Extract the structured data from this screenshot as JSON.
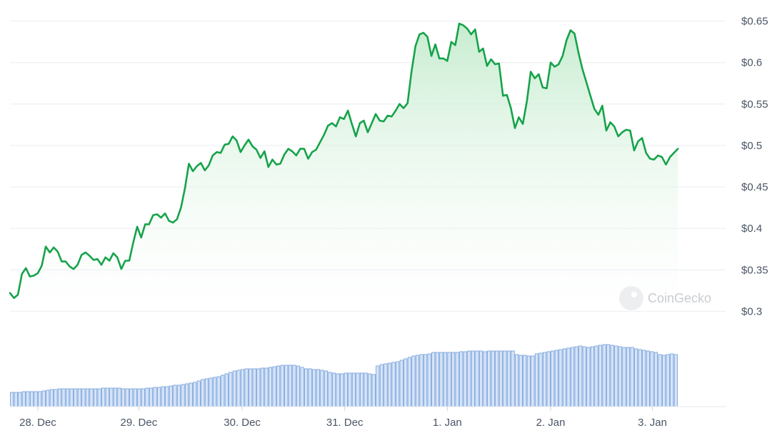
{
  "chart_data": {
    "type": "line",
    "watermark": "CoinGecko",
    "y_ticks": [
      "$0.3",
      "$0.35",
      "$0.4",
      "$0.45",
      "$0.5",
      "$0.55",
      "$0.6",
      "$0.65"
    ],
    "y_tick_values": [
      0.3,
      0.35,
      0.4,
      0.45,
      0.5,
      0.55,
      0.6,
      0.65
    ],
    "ylim": [
      0.29,
      0.66
    ],
    "x_ticks": [
      "28. Dec",
      "29. Dec",
      "30. Dec",
      "31. Dec",
      "1. Jan",
      "2. Jan",
      "3. Jan"
    ],
    "x_tick_values": [
      27.85,
      29.12,
      30.42,
      31.71,
      33.0,
      34.3,
      35.58
    ],
    "xlim": [
      27.5,
      36.5
    ],
    "grid": true,
    "colors": {
      "line": "#16a34a",
      "fill_top": "#c4ebcd",
      "volume_fill": "#d6e4f7",
      "volume_stroke": "#6f9bd8"
    },
    "series": [
      {
        "values": [
          [
            27.5,
            0.322
          ],
          [
            27.55,
            0.316
          ],
          [
            27.6,
            0.32
          ],
          [
            27.65,
            0.345
          ],
          [
            27.7,
            0.352
          ],
          [
            27.75,
            0.342
          ],
          [
            27.8,
            0.343
          ],
          [
            27.85,
            0.346
          ],
          [
            27.9,
            0.355
          ],
          [
            27.95,
            0.378
          ],
          [
            28.0,
            0.371
          ],
          [
            28.05,
            0.377
          ],
          [
            28.1,
            0.372
          ],
          [
            28.15,
            0.36
          ],
          [
            28.2,
            0.36
          ],
          [
            28.25,
            0.354
          ],
          [
            28.3,
            0.351
          ],
          [
            28.35,
            0.356
          ],
          [
            28.4,
            0.368
          ],
          [
            28.45,
            0.371
          ],
          [
            28.5,
            0.367
          ],
          [
            28.55,
            0.362
          ],
          [
            28.6,
            0.363
          ],
          [
            28.65,
            0.356
          ],
          [
            28.7,
            0.365
          ],
          [
            28.75,
            0.361
          ],
          [
            28.8,
            0.37
          ],
          [
            28.85,
            0.365
          ],
          [
            28.9,
            0.351
          ],
          [
            28.95,
            0.361
          ],
          [
            29.0,
            0.361
          ],
          [
            29.05,
            0.383
          ],
          [
            29.1,
            0.402
          ],
          [
            29.15,
            0.389
          ],
          [
            29.2,
            0.405
          ],
          [
            29.25,
            0.405
          ],
          [
            29.3,
            0.416
          ],
          [
            29.35,
            0.417
          ],
          [
            29.4,
            0.413
          ],
          [
            29.45,
            0.418
          ],
          [
            29.5,
            0.409
          ],
          [
            29.55,
            0.407
          ],
          [
            29.6,
            0.411
          ],
          [
            29.65,
            0.425
          ],
          [
            29.7,
            0.448
          ],
          [
            29.75,
            0.478
          ],
          [
            29.8,
            0.469
          ],
          [
            29.85,
            0.475
          ],
          [
            29.9,
            0.479
          ],
          [
            29.95,
            0.47
          ],
          [
            30.0,
            0.476
          ],
          [
            30.05,
            0.488
          ],
          [
            30.1,
            0.492
          ],
          [
            30.15,
            0.491
          ],
          [
            30.2,
            0.501
          ],
          [
            30.25,
            0.502
          ],
          [
            30.3,
            0.511
          ],
          [
            30.35,
            0.506
          ],
          [
            30.4,
            0.492
          ],
          [
            30.45,
            0.5
          ],
          [
            30.5,
            0.507
          ],
          [
            30.55,
            0.499
          ],
          [
            30.6,
            0.495
          ],
          [
            30.65,
            0.485
          ],
          [
            30.7,
            0.493
          ],
          [
            30.75,
            0.474
          ],
          [
            30.8,
            0.483
          ],
          [
            30.85,
            0.477
          ],
          [
            30.9,
            0.478
          ],
          [
            30.95,
            0.489
          ],
          [
            31.0,
            0.496
          ],
          [
            31.05,
            0.493
          ],
          [
            31.1,
            0.488
          ],
          [
            31.15,
            0.496
          ],
          [
            31.2,
            0.496
          ],
          [
            31.25,
            0.484
          ],
          [
            31.3,
            0.492
          ],
          [
            31.35,
            0.495
          ],
          [
            31.4,
            0.504
          ],
          [
            31.45,
            0.513
          ],
          [
            31.5,
            0.524
          ],
          [
            31.55,
            0.527
          ],
          [
            31.6,
            0.523
          ],
          [
            31.65,
            0.534
          ],
          [
            31.7,
            0.532
          ],
          [
            31.75,
            0.542
          ],
          [
            31.8,
            0.526
          ],
          [
            31.85,
            0.511
          ],
          [
            31.9,
            0.527
          ],
          [
            31.95,
            0.53
          ],
          [
            32.0,
            0.516
          ],
          [
            32.05,
            0.527
          ],
          [
            32.1,
            0.538
          ],
          [
            32.15,
            0.53
          ],
          [
            32.2,
            0.529
          ],
          [
            32.25,
            0.536
          ],
          [
            32.3,
            0.535
          ],
          [
            32.35,
            0.542
          ],
          [
            32.4,
            0.55
          ],
          [
            32.45,
            0.545
          ],
          [
            32.5,
            0.551
          ],
          [
            32.55,
            0.589
          ],
          [
            32.6,
            0.62
          ],
          [
            32.65,
            0.634
          ],
          [
            32.7,
            0.636
          ],
          [
            32.75,
            0.631
          ],
          [
            32.8,
            0.608
          ],
          [
            32.85,
            0.622
          ],
          [
            32.9,
            0.605
          ],
          [
            32.95,
            0.605
          ],
          [
            33.0,
            0.602
          ],
          [
            33.05,
            0.625
          ],
          [
            33.1,
            0.621
          ],
          [
            33.15,
            0.647
          ],
          [
            33.2,
            0.645
          ],
          [
            33.25,
            0.641
          ],
          [
            33.3,
            0.634
          ],
          [
            33.35,
            0.64
          ],
          [
            33.4,
            0.613
          ],
          [
            33.45,
            0.617
          ],
          [
            33.5,
            0.596
          ],
          [
            33.55,
            0.604
          ],
          [
            33.6,
            0.598
          ],
          [
            33.65,
            0.599
          ],
          [
            33.7,
            0.56
          ],
          [
            33.75,
            0.561
          ],
          [
            33.8,
            0.545
          ],
          [
            33.85,
            0.521
          ],
          [
            33.9,
            0.534
          ],
          [
            33.95,
            0.526
          ],
          [
            34.0,
            0.553
          ],
          [
            34.05,
            0.589
          ],
          [
            34.1,
            0.581
          ],
          [
            34.15,
            0.586
          ],
          [
            34.2,
            0.57
          ],
          [
            34.25,
            0.569
          ],
          [
            34.3,
            0.6
          ],
          [
            34.35,
            0.595
          ],
          [
            34.4,
            0.598
          ],
          [
            34.45,
            0.608
          ],
          [
            34.5,
            0.627
          ],
          [
            34.55,
            0.639
          ],
          [
            34.6,
            0.635
          ],
          [
            34.65,
            0.612
          ],
          [
            34.7,
            0.592
          ],
          [
            34.75,
            0.576
          ],
          [
            34.8,
            0.56
          ],
          [
            34.85,
            0.544
          ],
          [
            34.9,
            0.537
          ],
          [
            34.95,
            0.548
          ],
          [
            35.0,
            0.518
          ],
          [
            35.05,
            0.528
          ],
          [
            35.1,
            0.523
          ],
          [
            35.15,
            0.511
          ],
          [
            35.2,
            0.516
          ],
          [
            35.25,
            0.519
          ],
          [
            35.3,
            0.518
          ],
          [
            35.35,
            0.494
          ],
          [
            35.4,
            0.505
          ],
          [
            35.45,
            0.509
          ],
          [
            35.5,
            0.491
          ],
          [
            35.55,
            0.484
          ],
          [
            35.6,
            0.483
          ],
          [
            35.65,
            0.488
          ],
          [
            35.7,
            0.486
          ],
          [
            35.75,
            0.477
          ],
          [
            35.8,
            0.486
          ],
          [
            35.85,
            0.491
          ],
          [
            35.9,
            0.496
          ]
        ]
      }
    ],
    "volume": {
      "start": 27.5,
      "step": 0.05,
      "values": [
        0.2,
        0.2,
        0.2,
        0.21,
        0.21,
        0.21,
        0.21,
        0.21,
        0.22,
        0.23,
        0.24,
        0.24,
        0.25,
        0.25,
        0.25,
        0.25,
        0.25,
        0.25,
        0.25,
        0.25,
        0.25,
        0.25,
        0.25,
        0.26,
        0.26,
        0.26,
        0.26,
        0.26,
        0.25,
        0.25,
        0.25,
        0.25,
        0.25,
        0.25,
        0.26,
        0.26,
        0.27,
        0.27,
        0.28,
        0.28,
        0.29,
        0.3,
        0.3,
        0.31,
        0.32,
        0.33,
        0.34,
        0.36,
        0.38,
        0.39,
        0.4,
        0.41,
        0.42,
        0.44,
        0.46,
        0.48,
        0.5,
        0.51,
        0.52,
        0.53,
        0.53,
        0.53,
        0.53,
        0.54,
        0.54,
        0.55,
        0.56,
        0.57,
        0.58,
        0.58,
        0.58,
        0.58,
        0.57,
        0.55,
        0.53,
        0.53,
        0.52,
        0.52,
        0.51,
        0.5,
        0.48,
        0.47,
        0.46,
        0.46,
        0.47,
        0.47,
        0.47,
        0.47,
        0.47,
        0.47,
        0.46,
        0.45,
        0.57,
        0.59,
        0.6,
        0.61,
        0.62,
        0.63,
        0.65,
        0.67,
        0.69,
        0.71,
        0.72,
        0.73,
        0.73,
        0.74,
        0.76,
        0.76,
        0.76,
        0.76,
        0.76,
        0.76,
        0.76,
        0.77,
        0.77,
        0.78,
        0.78,
        0.78,
        0.78,
        0.77,
        0.78,
        0.78,
        0.78,
        0.78,
        0.78,
        0.78,
        0.78,
        0.73,
        0.72,
        0.72,
        0.71,
        0.71,
        0.74,
        0.75,
        0.76,
        0.77,
        0.78,
        0.79,
        0.8,
        0.81,
        0.82,
        0.83,
        0.84,
        0.85,
        0.84,
        0.83,
        0.84,
        0.85,
        0.86,
        0.87,
        0.87,
        0.86,
        0.85,
        0.84,
        0.83,
        0.83,
        0.83,
        0.81,
        0.8,
        0.79,
        0.78,
        0.77,
        0.76,
        0.73,
        0.72,
        0.73,
        0.74,
        0.73
      ]
    }
  }
}
